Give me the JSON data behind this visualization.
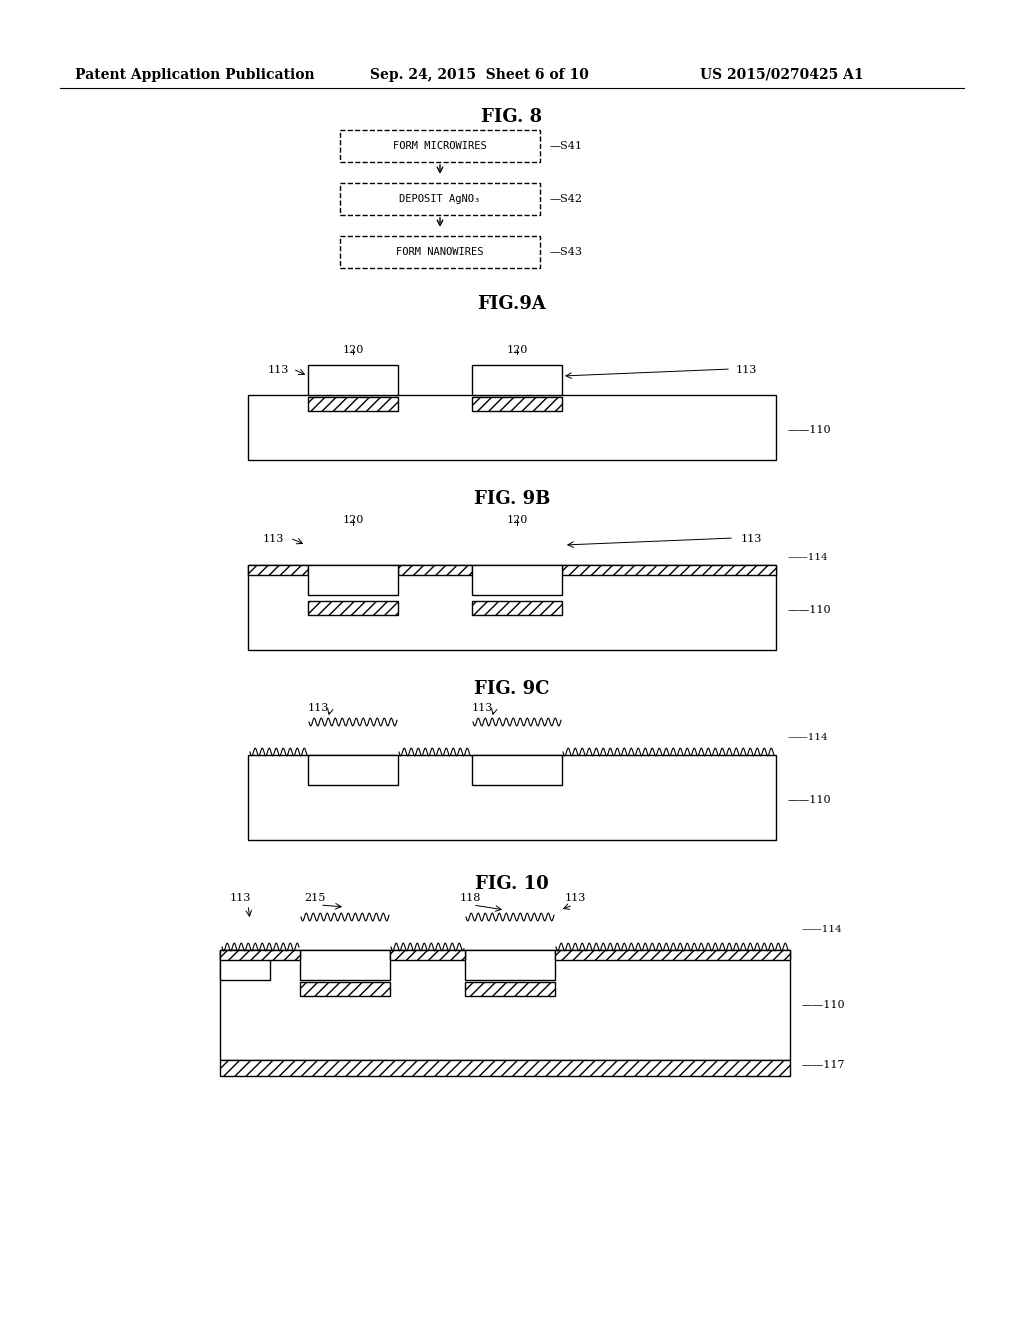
{
  "header_left": "Patent Application Publication",
  "header_mid": "Sep. 24, 2015  Sheet 6 of 10",
  "header_right": "US 2015/0270425 A1",
  "fig8_title": "FIG. 8",
  "fig8_boxes": [
    "FORM MICROWIRES",
    "DEPOSIT AgNO₃",
    "FORM NANOWIRES"
  ],
  "fig8_labels": [
    "S41",
    "S42",
    "S43"
  ],
  "fig9a_title": "FIG.9A",
  "fig9b_title": "FIG. 9B",
  "fig9c_title": "FIG. 9C",
  "fig10_title": "FIG. 10",
  "bg_color": "#ffffff",
  "line_color": "#000000",
  "hatch_color": "#000000"
}
